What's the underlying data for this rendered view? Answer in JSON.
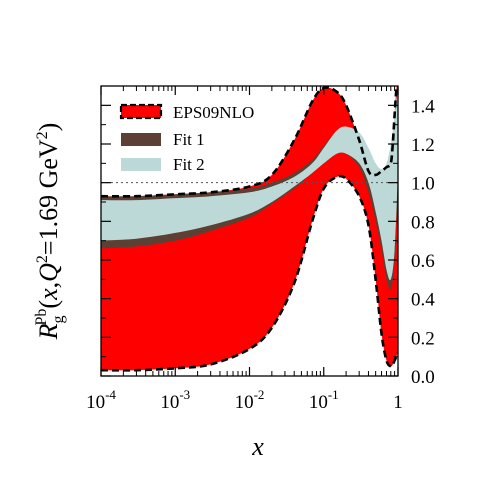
{
  "chart_data": {
    "type": "area",
    "xscale": "log",
    "xlim": [
      0.0001,
      1
    ],
    "ylim": [
      0.0,
      1.5
    ],
    "xlabel": "x",
    "ylabel_parts": {
      "R": "R",
      "sub": "g",
      "sup": "Pb",
      "open": "(",
      "x": "x",
      "comma": ",",
      "Q": "Q",
      "q2": "2",
      "eq": "=1.69 GeV",
      "gev2": "2",
      "close": ")"
    },
    "x_ticks": [
      {
        "value": 0.0001,
        "base": "10",
        "exp": "-4"
      },
      {
        "value": 0.001,
        "base": "10",
        "exp": "-3"
      },
      {
        "value": 0.01,
        "base": "10",
        "exp": "-2"
      },
      {
        "value": 0.1,
        "base": "10",
        "exp": "-1"
      },
      {
        "value": 1,
        "base": "1",
        "exp": ""
      }
    ],
    "y_ticks": [
      "0.0",
      "0.2",
      "0.4",
      "0.6",
      "0.8",
      "1.0",
      "1.2",
      "1.4"
    ],
    "reference_line": 1.0,
    "legend": {
      "position": "top-left",
      "entries": [
        "EPS09NLO",
        "Fit 1",
        "Fit 2"
      ]
    },
    "colors": {
      "eps09": "#ff0000",
      "fit1": "#5c4033",
      "fit2": "#bcd9d8"
    },
    "series": [
      {
        "name": "EPS09NLO",
        "x": [
          0.0001,
          0.0003,
          0.001,
          0.003,
          0.01,
          0.02,
          0.04,
          0.07,
          0.1,
          0.15,
          0.2,
          0.3,
          0.4,
          0.5,
          0.6,
          0.7,
          0.8,
          0.85,
          0.9,
          0.95,
          1.0
        ],
        "upper": [
          0.93,
          0.93,
          0.94,
          0.95,
          0.98,
          1.04,
          1.22,
          1.42,
          1.49,
          1.47,
          1.4,
          1.22,
          1.06,
          1.04,
          1.06,
          1.08,
          1.1,
          1.2,
          1.35,
          1.48,
          1.55
        ],
        "lower": [
          0.03,
          0.03,
          0.04,
          0.06,
          0.14,
          0.25,
          0.48,
          0.8,
          0.97,
          1.03,
          1.02,
          0.93,
          0.78,
          0.5,
          0.22,
          0.08,
          0.05,
          0.06,
          0.08,
          0.1,
          0.12
        ]
      },
      {
        "name": "Fit 1",
        "x": [
          0.0001,
          0.0003,
          0.001,
          0.003,
          0.01,
          0.02,
          0.04,
          0.07,
          0.1,
          0.15,
          0.2,
          0.3,
          0.4,
          0.5,
          0.6,
          0.7,
          0.8,
          0.9,
          1.0
        ],
        "upper": [
          0.93,
          0.93,
          0.94,
          0.95,
          0.97,
          1.0,
          1.05,
          1.12,
          1.19,
          1.27,
          1.28,
          1.2,
          1.08,
          0.95,
          0.8,
          0.62,
          0.58,
          0.8,
          1.2
        ],
        "lower": [
          0.66,
          0.67,
          0.7,
          0.75,
          0.82,
          0.89,
          0.97,
          1.05,
          1.1,
          1.15,
          1.15,
          1.08,
          0.95,
          0.8,
          0.65,
          0.5,
          0.45,
          0.6,
          1.0
        ]
      },
      {
        "name": "Fit 2",
        "x": [
          0.0001,
          0.0003,
          0.001,
          0.003,
          0.01,
          0.02,
          0.04,
          0.07,
          0.1,
          0.15,
          0.2,
          0.3,
          0.4,
          0.5,
          0.6,
          0.7,
          0.8,
          0.9,
          1.0
        ],
        "upper": [
          0.91,
          0.91,
          0.92,
          0.93,
          0.95,
          0.98,
          1.03,
          1.1,
          1.18,
          1.27,
          1.29,
          1.26,
          1.18,
          1.1,
          1.07,
          1.1,
          1.2,
          1.35,
          1.5
        ],
        "lower": [
          0.7,
          0.71,
          0.74,
          0.78,
          0.84,
          0.9,
          0.98,
          1.05,
          1.1,
          1.15,
          1.15,
          1.1,
          1.0,
          0.85,
          0.7,
          0.55,
          0.5,
          0.65,
          1.05
        ]
      }
    ]
  }
}
